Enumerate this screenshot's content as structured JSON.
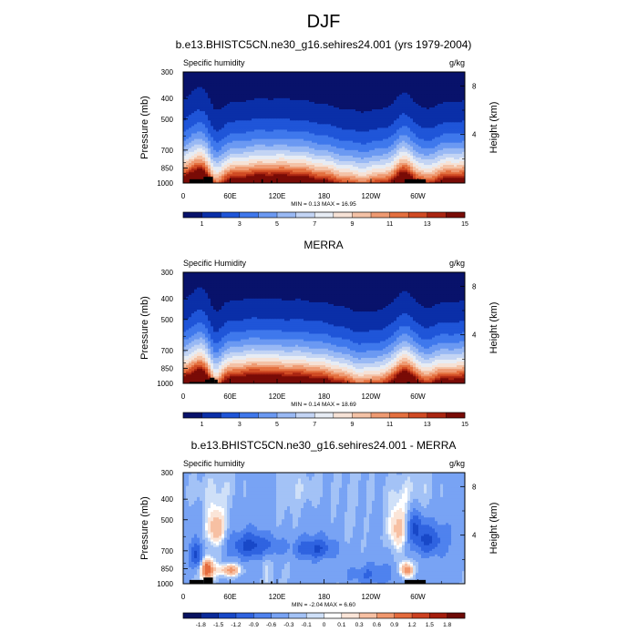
{
  "page_title": "DJF",
  "panels": [
    {
      "title": "b.e13.BHISTC5CN.ne30_g16.sehires24.001 (yrs 1979-2004)",
      "left_label": "Specific humidity",
      "right_label": "g/kg",
      "stats": "MIN =   0.13  MAX =  16.95",
      "colorbar_labels": [
        "1",
        "3",
        "5",
        "7",
        "9",
        "11",
        "13",
        "15"
      ]
    },
    {
      "title": "MERRA",
      "left_label": "Specific Humidity",
      "right_label": "g/kg",
      "stats": "MIN =   0.14  MAX =  18.69",
      "colorbar_labels": [
        "1",
        "3",
        "5",
        "7",
        "9",
        "11",
        "13",
        "15"
      ]
    },
    {
      "title": "b.e13.BHISTC5CN.ne30_g16.sehires24.001 - MERRA",
      "left_label": "Specific humidity",
      "right_label": "g/kg",
      "stats": "MIN =  -2.04  MAX =   6.60",
      "colorbar_labels": [
        "-1.8",
        "-1.5",
        "-1.2",
        "-0.9",
        "-0.6",
        "-0.3",
        "-0.1",
        "0",
        "0.1",
        "0.3",
        "0.6",
        "0.9",
        "1.2",
        "1.5",
        "1.8"
      ]
    }
  ],
  "axes": {
    "ylabel": "Pressure (mb)",
    "y2label": "Height (km)",
    "yticks": [
      "300",
      "400",
      "500",
      "700",
      "850",
      "1000"
    ],
    "y2ticks": [
      "8",
      "4"
    ],
    "xticks": [
      "0",
      "60E",
      "120E",
      "180",
      "120W",
      "60W"
    ]
  },
  "chart_data": [
    {
      "type": "heatmap",
      "title": "b.e13.BHISTC5CN.ne30_g16.sehires24.001 (yrs 1979-2004)",
      "variable": "Specific humidity",
      "units": "g/kg",
      "x_range": [
        0,
        360
      ],
      "y_range_mb": [
        1000,
        300
      ],
      "levels": [
        1,
        3,
        5,
        7,
        9,
        11,
        13,
        15
      ],
      "min": 0.13,
      "max": 16.95
    },
    {
      "type": "heatmap",
      "title": "MERRA",
      "variable": "Specific Humidity",
      "units": "g/kg",
      "x_range": [
        0,
        360
      ],
      "y_range_mb": [
        1000,
        300
      ],
      "levels": [
        1,
        3,
        5,
        7,
        9,
        11,
        13,
        15
      ],
      "min": 0.14,
      "max": 18.69
    },
    {
      "type": "heatmap",
      "title": "b.e13.BHISTC5CN.ne30_g16.sehires24.001 - MERRA",
      "variable": "Specific humidity",
      "units": "g/kg",
      "x_range": [
        0,
        360
      ],
      "y_range_mb": [
        1000,
        300
      ],
      "levels": [
        -1.8,
        -1.5,
        -1.2,
        -0.9,
        -0.6,
        -0.3,
        -0.1,
        0,
        0.1,
        0.3,
        0.6,
        0.9,
        1.2,
        1.5,
        1.8
      ],
      "min": -2.04,
      "max": 6.6
    }
  ],
  "colors": {
    "seq_scale": [
      "#08126b",
      "#0a2fa8",
      "#1f55d8",
      "#3f78ec",
      "#6b99f2",
      "#99b9f4",
      "#c3d4f4",
      "#e7ecf4",
      "#f6e2d6",
      "#f4c2a6",
      "#ee9a72",
      "#e4703f",
      "#d04a23",
      "#aa2511",
      "#790b06"
    ],
    "div_scale": [
      "#081260",
      "#0a2a9a",
      "#1848c8",
      "#2f63e0",
      "#4f82ee",
      "#78a3f4",
      "#a3c2f6",
      "#cfe0f8",
      "#ffffff",
      "#fbe5d8",
      "#f7c0a3",
      "#f0976d",
      "#e46a3c",
      "#cc4020",
      "#a51d0d",
      "#6e0a06"
    ],
    "missing": "#000000"
  }
}
